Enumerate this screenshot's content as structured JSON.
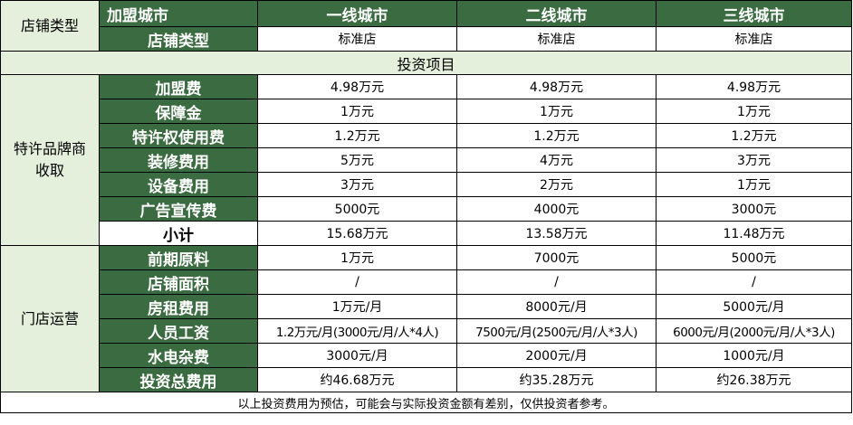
{
  "header": {
    "side_label": "店铺类型",
    "city_label": "加盟城市",
    "cities": [
      "一线城市",
      "二线城市",
      "三线城市"
    ],
    "store_type_label": "店铺类型",
    "store_types": [
      "标准店",
      "标准店",
      "标准店"
    ]
  },
  "section_title": "投资项目",
  "groups": [
    {
      "label": "特许品牌商收取",
      "rows": [
        {
          "label": "加盟费",
          "values": [
            "4.98万元",
            "4.98万元",
            "4.98万元"
          ]
        },
        {
          "label": "保障金",
          "values": [
            "1万元",
            "1万元",
            "1万元"
          ]
        },
        {
          "label": "特许权使用费",
          "values": [
            "1.2万元",
            "1.2万元",
            "1.2万元"
          ]
        },
        {
          "label": "装修费用",
          "values": [
            "5万元",
            "4万元",
            "3万元"
          ]
        },
        {
          "label": "设备费用",
          "values": [
            "3万元",
            "2万元",
            "1万元"
          ]
        },
        {
          "label": "广告宣传费",
          "values": [
            "5000元",
            "4000元",
            "3000元"
          ]
        },
        {
          "label": "小计",
          "values": [
            "15.68万元",
            "13.58万元",
            "11.48万元"
          ]
        }
      ]
    },
    {
      "label": "门店运营",
      "rows": [
        {
          "label": "前期原料",
          "values": [
            "1万元",
            "7000元",
            "5000元"
          ]
        },
        {
          "label": "店铺面积",
          "values": [
            "/",
            "/",
            "/"
          ]
        },
        {
          "label": "房租费用",
          "values": [
            "1万元/月",
            "8000元/月",
            "5000元/月"
          ]
        },
        {
          "label": "人员工资",
          "values": [
            "1.2万元/月(3000元/月/人*4人)",
            "7500元/月(2500元/月/人*3人)",
            "6000元/月(2000元/月/人*3人)"
          ]
        },
        {
          "label": "水电杂费",
          "values": [
            "3000元/月",
            "2000元/月",
            "1000元/月"
          ]
        },
        {
          "label": "投资总费用",
          "values": [
            "约46.68万元",
            "约35.28万元",
            "约26.38万元"
          ]
        }
      ]
    }
  ],
  "footnote": "以上投资费用为预估，可能会与实际投资金额有差别，仅供投资者参考。"
}
